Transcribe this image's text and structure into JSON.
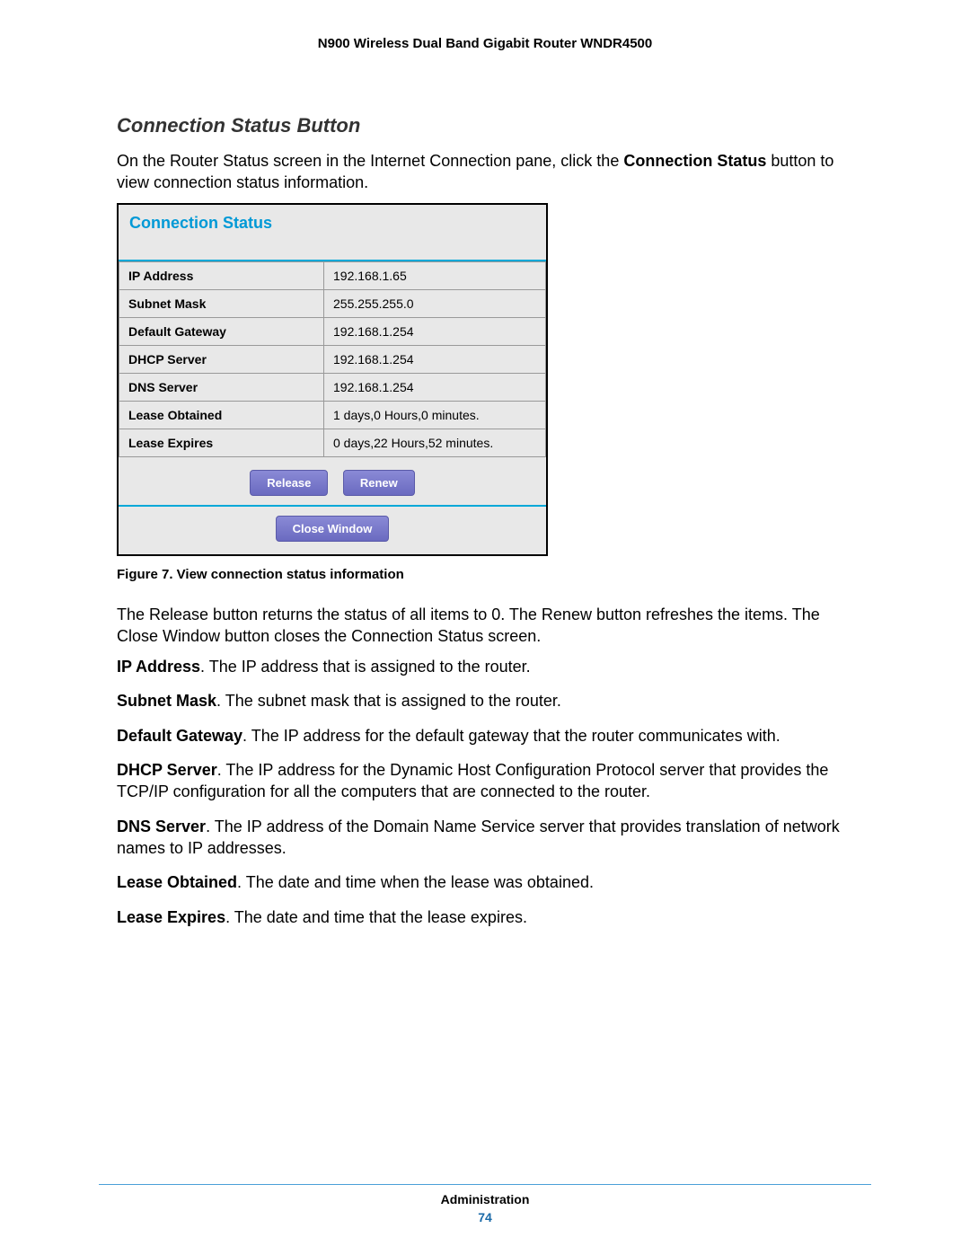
{
  "doc_header": "N900 Wireless Dual Band Gigabit Router WNDR4500",
  "section_heading": "Connection Status Button",
  "intro_p1_a": "On the Router Status screen in the Internet Connection pane, click the ",
  "intro_p1_bold": "Connection Status",
  "intro_p1_b": " button to view connection status information.",
  "panel": {
    "title": "Connection Status",
    "rows": [
      {
        "label": "IP Address",
        "value": "192.168.1.65"
      },
      {
        "label": "Subnet Mask",
        "value": "255.255.255.0"
      },
      {
        "label": "Default Gateway",
        "value": "192.168.1.254"
      },
      {
        "label": "DHCP Server",
        "value": "192.168.1.254"
      },
      {
        "label": "DNS Server",
        "value": "192.168.1.254"
      },
      {
        "label": "Lease Obtained",
        "value": "1 days,0 Hours,0 minutes."
      },
      {
        "label": "Lease Expires",
        "value": "0 days,22 Hours,52 minutes."
      }
    ],
    "buttons": {
      "release": "Release",
      "renew": "Renew",
      "close": "Close Window"
    },
    "colors": {
      "title_color": "#0099d6",
      "divider_color": "#00a8d8",
      "button_bg_top": "#8a8ad6",
      "button_bg_bottom": "#6a6ac0",
      "panel_bg": "#e8e8e8",
      "cell_border": "#999999"
    }
  },
  "figure_caption": "Figure 7. View connection status information",
  "post_para": "The Release button returns the status of all items to 0. The Renew button refreshes the items. The Close Window button closes the Connection Status screen.",
  "defs": [
    {
      "term": "IP Address",
      "text": ". The IP address that is assigned to the router."
    },
    {
      "term": "Subnet Mask",
      "text": ". The subnet mask that is assigned to the router."
    },
    {
      "term": "Default Gateway",
      "text": ". The IP address for the default gateway that the router communicates with."
    },
    {
      "term": "DHCP Server",
      "text": ". The IP address for the Dynamic Host Configuration Protocol server that provides the TCP/IP configuration for all the computers that are connected to the router."
    },
    {
      "term": "DNS Server",
      "text": ". The IP address of the Domain Name Service server that provides translation of network names to IP addresses."
    },
    {
      "term": "Lease Obtained",
      "text": ". The date and time when the lease was obtained."
    },
    {
      "term": "Lease Expires",
      "text": ". The date and time that the lease expires."
    }
  ],
  "footer": {
    "section": "Administration",
    "page": "74"
  }
}
